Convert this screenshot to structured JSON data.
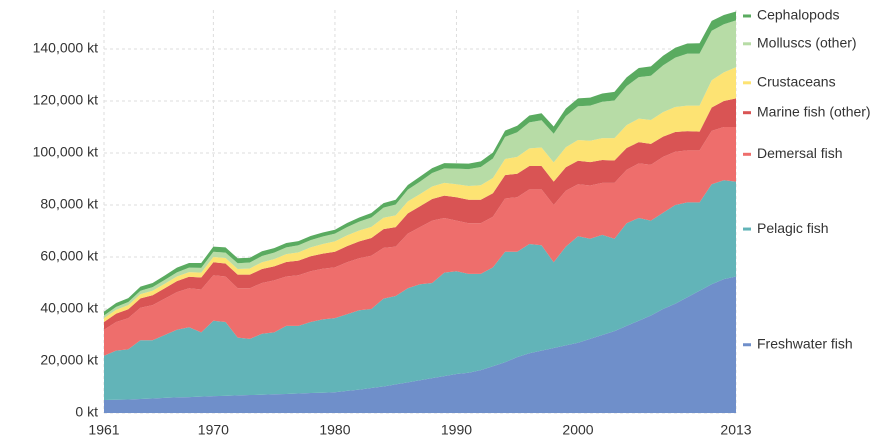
{
  "chart_data": {
    "type": "stacked_area",
    "x": [
      1961,
      1962,
      1963,
      1964,
      1965,
      1966,
      1967,
      1968,
      1969,
      1970,
      1971,
      1972,
      1973,
      1974,
      1975,
      1976,
      1977,
      1978,
      1979,
      1980,
      1981,
      1982,
      1983,
      1984,
      1985,
      1986,
      1987,
      1988,
      1989,
      1990,
      1991,
      1992,
      1993,
      1994,
      1995,
      1996,
      1997,
      1998,
      1999,
      2000,
      2001,
      2002,
      2003,
      2004,
      2005,
      2006,
      2007,
      2008,
      2009,
      2010,
      2011,
      2012,
      2013
    ],
    "xlim": [
      1961,
      2013
    ],
    "xticks": [
      1961,
      1970,
      1980,
      1990,
      2000,
      2013
    ],
    "ylim": [
      0,
      155000
    ],
    "yticks": [
      {
        "value": 0,
        "label": "0 kt"
      },
      {
        "value": 20000,
        "label": "20,000 kt"
      },
      {
        "value": 40000,
        "label": "40,000 kt"
      },
      {
        "value": 60000,
        "label": "60,000 kt"
      },
      {
        "value": 80000,
        "label": "80,000 kt"
      },
      {
        "value": 100000,
        "label": "100,000 kt"
      },
      {
        "value": 120000,
        "label": "120,000 kt"
      },
      {
        "value": 140000,
        "label": "140,000 kt"
      }
    ],
    "grid": true,
    "series": [
      {
        "name": "Freshwater fish",
        "color": "#6f8fca",
        "values": [
          5000,
          5100,
          5200,
          5400,
          5600,
          5800,
          6000,
          6100,
          6300,
          6500,
          6600,
          6800,
          6900,
          7000,
          7200,
          7300,
          7500,
          7700,
          7800,
          8000,
          8500,
          9000,
          9600,
          10200,
          11000,
          11800,
          12600,
          13400,
          14200,
          15000,
          15500,
          16500,
          18000,
          19500,
          21500,
          23000,
          24000,
          25000,
          26000,
          27000,
          28500,
          30000,
          31500,
          33500,
          35500,
          37500,
          40000,
          42000,
          44500,
          47000,
          49500,
          51500,
          52500
        ]
      },
      {
        "name": "Pelagic fish",
        "color": "#62b4b8",
        "values": [
          17000,
          18900,
          19300,
          22600,
          22400,
          24200,
          26000,
          26900,
          24700,
          29000,
          28400,
          22200,
          21600,
          23500,
          23800,
          26200,
          26000,
          27300,
          28200,
          28500,
          29500,
          30500,
          30400,
          33800,
          34000,
          36200,
          36900,
          36600,
          39800,
          39500,
          38000,
          37000,
          38000,
          42500,
          40500,
          42000,
          40500,
          33000,
          38000,
          41000,
          38500,
          38500,
          35500,
          39500,
          39500,
          36500,
          37000,
          38000,
          36500,
          34000,
          38500,
          38000,
          36500
        ]
      },
      {
        "name": "Demersal fish",
        "color": "#ee6e6c",
        "values": [
          10000,
          11000,
          12000,
          12500,
          13500,
          14000,
          14500,
          15000,
          16500,
          17500,
          17500,
          19000,
          19500,
          19500,
          20000,
          19000,
          19500,
          19500,
          19500,
          19500,
          20000,
          20000,
          20500,
          19500,
          19000,
          21000,
          22000,
          24000,
          21000,
          19500,
          19500,
          19500,
          19500,
          20500,
          21000,
          21000,
          21500,
          22000,
          21500,
          20000,
          20500,
          20000,
          21500,
          20500,
          21000,
          21500,
          21500,
          20500,
          20000,
          20000,
          20500,
          20500,
          21000
        ]
      },
      {
        "name": "Marine fish (other)",
        "color": "#d95454",
        "values": [
          3000,
          3200,
          3400,
          3600,
          3800,
          4000,
          4200,
          4400,
          4600,
          5000,
          5000,
          5200,
          5200,
          5400,
          5400,
          5600,
          5600,
          5800,
          5800,
          6000,
          6200,
          6500,
          6800,
          7200,
          7500,
          7800,
          8000,
          8300,
          8600,
          9000,
          9000,
          9000,
          9000,
          9000,
          9000,
          9000,
          9000,
          9000,
          9000,
          9000,
          9000,
          8800,
          8600,
          8400,
          8200,
          8000,
          7800,
          7600,
          7400,
          7200,
          9000,
          10000,
          11000
        ]
      },
      {
        "name": "Crustaceans",
        "color": "#fde373",
        "values": [
          1500,
          1500,
          1600,
          1600,
          1700,
          1700,
          1800,
          1800,
          1900,
          2000,
          2100,
          2200,
          2400,
          2600,
          2800,
          3000,
          3200,
          3400,
          3700,
          4000,
          4100,
          4200,
          4300,
          4400,
          4500,
          4600,
          4700,
          4800,
          4900,
          5000,
          5300,
          5600,
          5900,
          6200,
          6500,
          6800,
          7100,
          7400,
          7700,
          8000,
          8200,
          8400,
          8600,
          8800,
          9000,
          9200,
          9400,
          9600,
          9800,
          10000,
          10500,
          11000,
          12000
        ]
      },
      {
        "name": "Molluscs (other)",
        "color": "#b7dca6",
        "values": [
          1000,
          1100,
          1200,
          1300,
          1400,
          1500,
          1600,
          1700,
          1800,
          2000,
          2100,
          2200,
          2300,
          2400,
          2500,
          2600,
          2700,
          2800,
          2900,
          3000,
          3200,
          3400,
          3600,
          3900,
          4200,
          4500,
          4800,
          5200,
          5600,
          6000,
          6500,
          7000,
          7500,
          8500,
          9500,
          10000,
          10500,
          11000,
          12000,
          13000,
          13500,
          14000,
          14500,
          15000,
          16000,
          17000,
          18000,
          19000,
          20000,
          20000,
          19000,
          18500,
          18000
        ]
      },
      {
        "name": "Cephalopods",
        "color": "#5aab60",
        "values": [
          1500,
          1500,
          1500,
          1600,
          1600,
          1700,
          1800,
          1800,
          1900,
          2000,
          2000,
          1900,
          1800,
          1800,
          1700,
          1700,
          1600,
          1600,
          1500,
          1500,
          1600,
          1600,
          1700,
          1700,
          1800,
          1800,
          1900,
          1900,
          2000,
          2000,
          2100,
          2200,
          2300,
          2400,
          2500,
          2600,
          2700,
          2800,
          2900,
          3000,
          3100,
          3200,
          3300,
          3400,
          3500,
          3600,
          3700,
          3800,
          3900,
          4000,
          3800,
          3600,
          3400
        ]
      }
    ]
  }
}
